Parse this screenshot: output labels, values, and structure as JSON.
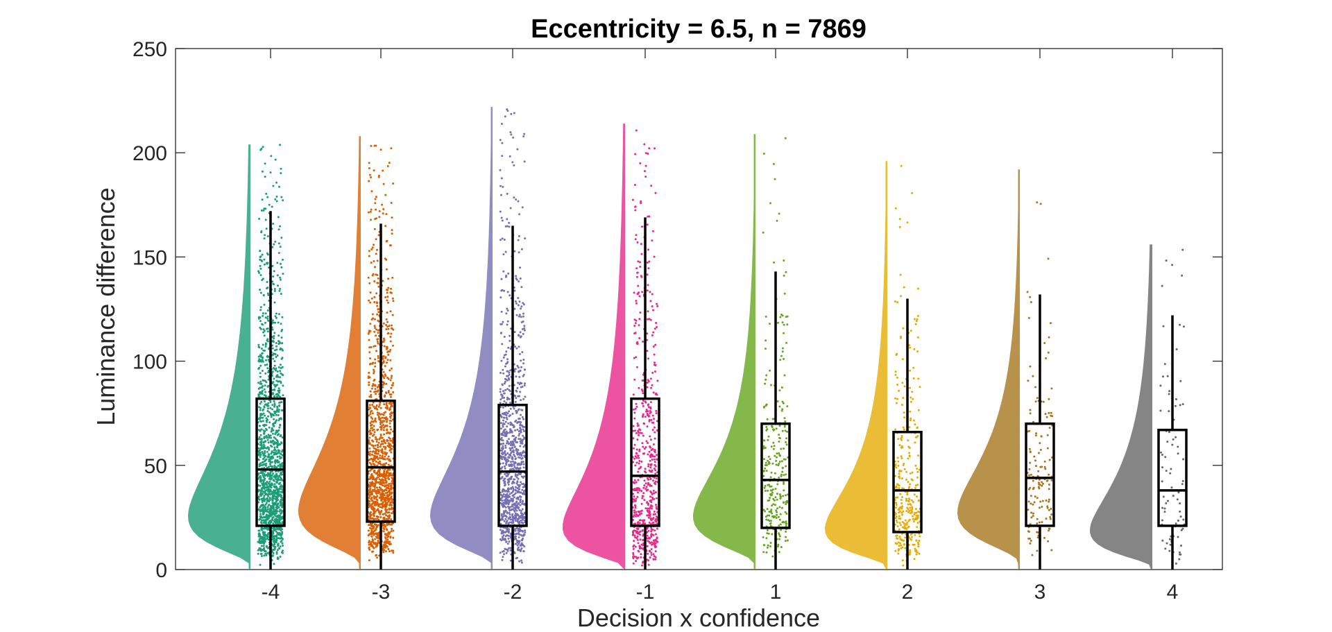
{
  "chart_data": {
    "type": "raincloud",
    "title": "Eccentricity = 6.5, n = 7869",
    "xlabel": "Decision x confidence",
    "ylabel": "Luminance difference",
    "ylim": [
      0,
      250
    ],
    "yticks": [
      "0",
      "50",
      "100",
      "150",
      "200",
      "250"
    ],
    "grid": false,
    "categories": [
      "-4",
      "-3",
      "-2",
      "-1",
      "1",
      "2",
      "3",
      "4"
    ],
    "colors": [
      "#1b9e77",
      "#d95f02",
      "#7570b3",
      "#e7298a",
      "#66a61e",
      "#e6ab02",
      "#a6761d",
      "#666666"
    ],
    "boxes": [
      {
        "q1": 21,
        "median": 48,
        "q3": 82,
        "whisker_low": 0,
        "whisker_high": 172,
        "max": 204
      },
      {
        "q1": 23,
        "median": 49,
        "q3": 81,
        "whisker_low": 0,
        "whisker_high": 166,
        "max": 208
      },
      {
        "q1": 21,
        "median": 47,
        "q3": 79,
        "whisker_low": 0,
        "whisker_high": 165,
        "max": 222
      },
      {
        "q1": 21,
        "median": 45,
        "q3": 82,
        "whisker_low": 0,
        "whisker_high": 169,
        "max": 214
      },
      {
        "q1": 20,
        "median": 43,
        "q3": 70,
        "whisker_low": 0,
        "whisker_high": 143,
        "max": 209
      },
      {
        "q1": 18,
        "median": 38,
        "q3": 66,
        "whisker_low": 0,
        "whisker_high": 130,
        "max": 196
      },
      {
        "q1": 21,
        "median": 44,
        "q3": 70,
        "whisker_low": 0,
        "whisker_high": 132,
        "max": 192
      },
      {
        "q1": 21,
        "median": 38,
        "q3": 67,
        "whisker_low": 0,
        "whisker_high": 122,
        "max": 156
      }
    ],
    "point_counts": [
      1600,
      1300,
      1050,
      650,
      280,
      330,
      150,
      90
    ]
  }
}
